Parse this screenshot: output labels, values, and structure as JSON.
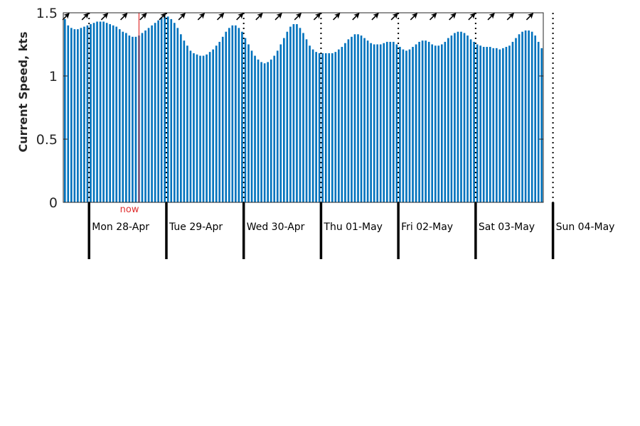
{
  "chart_data": {
    "type": "bar",
    "ylabel": "Current Speed, kts",
    "ylim": [
      0,
      1.5
    ],
    "yticks": [
      {
        "value": 0,
        "label": "0"
      },
      {
        "value": 0.5,
        "label": "0.5"
      },
      {
        "value": 1,
        "label": "1"
      },
      {
        "value": 1.5,
        "label": "1.5"
      }
    ],
    "grid": false,
    "bar_color": "#0072bd",
    "now_color": "#e03030",
    "now_label": "now",
    "now_hour": 23,
    "hours_before_first_day": 8,
    "days": [
      "Mon 28-Apr",
      "Tue 29-Apr",
      "Wed 30-Apr",
      "Thu 01-May",
      "Fri 02-May",
      "Sat 03-May",
      "Sun 04-May"
    ],
    "hourly_speed_kts": [
      1.45,
      1.4,
      1.38,
      1.37,
      1.37,
      1.38,
      1.39,
      1.4,
      1.41,
      1.42,
      1.43,
      1.43,
      1.43,
      1.42,
      1.41,
      1.4,
      1.39,
      1.37,
      1.35,
      1.34,
      1.32,
      1.31,
      1.31,
      1.32,
      1.34,
      1.36,
      1.38,
      1.4,
      1.42,
      1.44,
      1.46,
      1.47,
      1.47,
      1.45,
      1.42,
      1.38,
      1.33,
      1.28,
      1.24,
      1.2,
      1.18,
      1.17,
      1.16,
      1.16,
      1.17,
      1.19,
      1.21,
      1.24,
      1.27,
      1.31,
      1.35,
      1.38,
      1.4,
      1.4,
      1.38,
      1.35,
      1.3,
      1.25,
      1.2,
      1.16,
      1.13,
      1.11,
      1.1,
      1.11,
      1.13,
      1.16,
      1.2,
      1.25,
      1.3,
      1.35,
      1.39,
      1.41,
      1.41,
      1.38,
      1.34,
      1.29,
      1.24,
      1.21,
      1.19,
      1.18,
      1.18,
      1.18,
      1.18,
      1.18,
      1.19,
      1.21,
      1.23,
      1.26,
      1.29,
      1.31,
      1.33,
      1.33,
      1.32,
      1.3,
      1.28,
      1.26,
      1.25,
      1.25,
      1.25,
      1.26,
      1.27,
      1.27,
      1.27,
      1.25,
      1.23,
      1.21,
      1.2,
      1.21,
      1.23,
      1.25,
      1.27,
      1.28,
      1.28,
      1.27,
      1.25,
      1.24,
      1.24,
      1.25,
      1.27,
      1.3,
      1.32,
      1.34,
      1.35,
      1.35,
      1.34,
      1.32,
      1.29,
      1.27,
      1.25,
      1.24,
      1.23,
      1.23,
      1.23,
      1.22,
      1.22,
      1.21,
      1.22,
      1.23,
      1.24,
      1.27,
      1.3,
      1.33,
      1.35,
      1.36,
      1.36,
      1.35,
      1.32,
      1.27,
      1.22
    ],
    "direction_arrow_interval_hours": 6,
    "direction_arrow_glyph": "northeast-arrow"
  }
}
